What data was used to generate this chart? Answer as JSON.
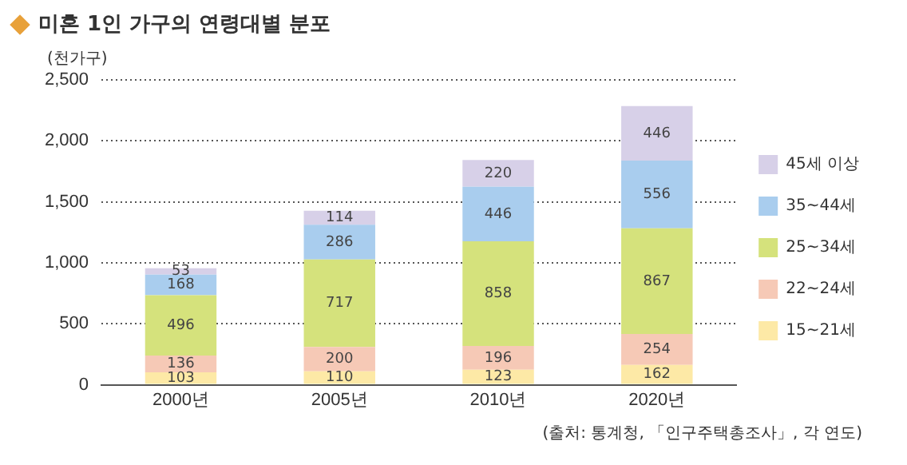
{
  "chart_data": {
    "type": "bar",
    "title": "미혼 1인 가구의 연령대별 분포",
    "ylabel": "(천가구)",
    "annotations": [
      "(출처: 통계청, 「인구주택총조사」, 각 연도)"
    ],
    "categories": [
      "2000년",
      "2005년",
      "2010년",
      "2020년"
    ],
    "series": [
      {
        "name": "15~21세",
        "color": "#fde9a6",
        "values": [
          103,
          110,
          123,
          162
        ]
      },
      {
        "name": "22~24세",
        "color": "#f6c9b6",
        "values": [
          136,
          200,
          196,
          254
        ]
      },
      {
        "name": "25~34세",
        "color": "#d5e27c",
        "values": [
          496,
          717,
          858,
          867
        ]
      },
      {
        "name": "35~44세",
        "color": "#a9cdee",
        "values": [
          168,
          286,
          446,
          556
        ]
      },
      {
        "name": "45세 이상",
        "color": "#d7d0e8",
        "values": [
          53,
          114,
          220,
          446
        ]
      }
    ],
    "stacked": true,
    "data_labels": true,
    "legend": "right",
    "grid": "y",
    "ylim": [
      0,
      2500
    ],
    "yticks": [
      0,
      {
        "value": 500,
        "label": "500"
      },
      {
        "value": 1000,
        "label": "1,000"
      },
      {
        "value": 1500,
        "label": "1,500"
      },
      {
        "value": 2000,
        "label": "2,000"
      },
      {
        "value": 2500,
        "label": "2,500"
      }
    ]
  }
}
